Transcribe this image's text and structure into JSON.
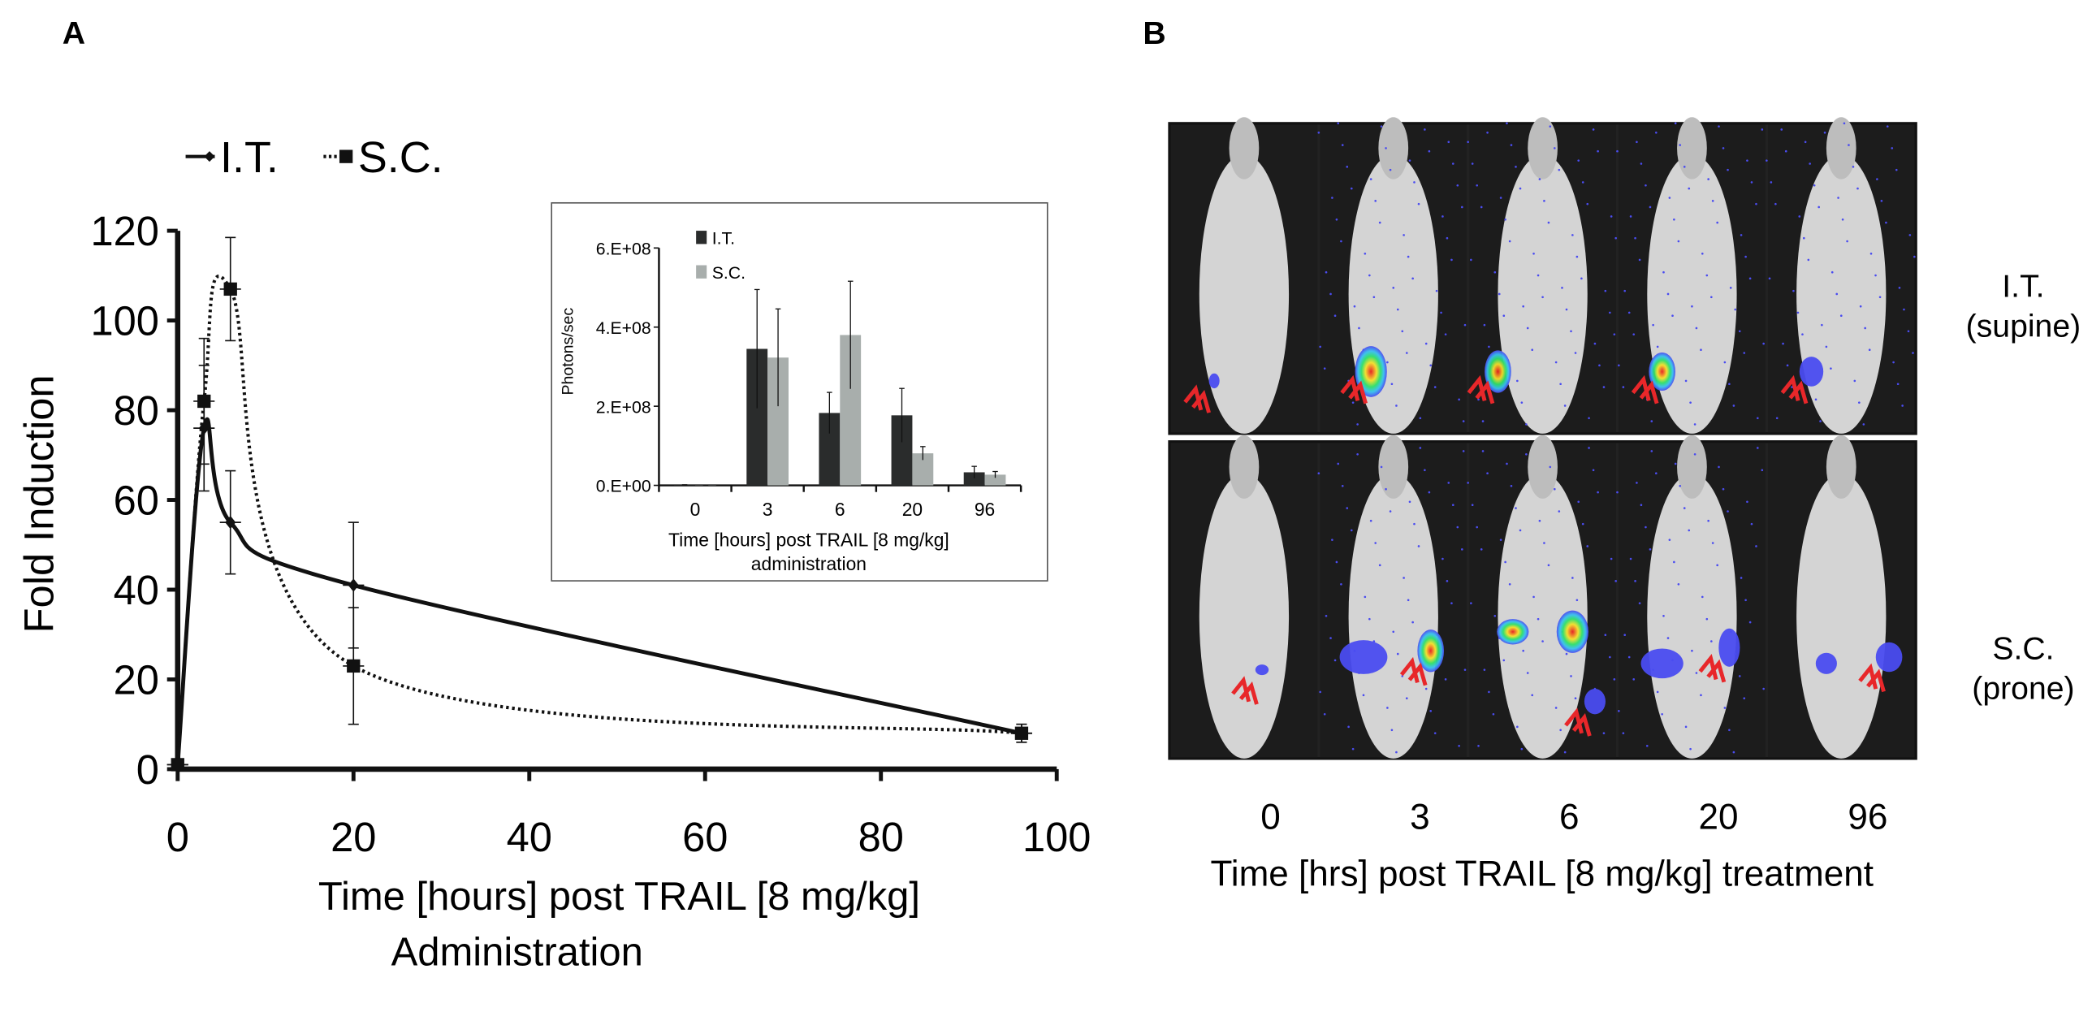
{
  "panels": {
    "a_label": "A",
    "b_label": "B"
  },
  "chart_data": [
    {
      "type": "line",
      "panel": "A",
      "xlabel_line1": "Time [hours] post TRAIL [8 mg/kg]",
      "xlabel_line2": "Administration",
      "ylabel": "Fold Induction",
      "xlim": [
        0,
        100
      ],
      "ylim": [
        0,
        120
      ],
      "xticks": [
        0,
        20,
        40,
        60,
        80,
        100
      ],
      "yticks": [
        0,
        20,
        40,
        60,
        80,
        100,
        120
      ],
      "grid": false,
      "legend_position": "top-left",
      "series": [
        {
          "name": "I.T.",
          "style": "solid",
          "marker": "diamond",
          "x": [
            0,
            3,
            6,
            20,
            96
          ],
          "y": [
            1,
            76,
            55,
            41,
            8
          ],
          "yerr": [
            0.5,
            14,
            11.5,
            14,
            2
          ]
        },
        {
          "name": "S.C.",
          "style": "dotted",
          "marker": "square",
          "x": [
            0,
            3,
            6,
            20,
            96
          ],
          "y": [
            1,
            82,
            107,
            23,
            8
          ],
          "yerr": [
            0.5,
            14,
            11.5,
            13,
            2
          ]
        }
      ]
    },
    {
      "type": "bar",
      "panel": "A-inset",
      "categories": [
        "0",
        "3",
        "6",
        "20",
        "96"
      ],
      "xlabel_line1": "Time [hours] post TRAIL [8 mg/kg]",
      "xlabel_line2": "administration",
      "ylabel": "Photons/sec",
      "ylim": [
        0,
        600000000
      ],
      "ytick_labels": [
        "0.E+00",
        "2.E+08",
        "4.E+08",
        "6.E+08"
      ],
      "yticks": [
        0,
        200000000,
        400000000,
        600000000
      ],
      "legend_position": "top-left",
      "series": [
        {
          "name": "I.T.",
          "color": "#2a2c2c",
          "values": [
            1000000,
            345000000,
            183000000,
            177000000,
            33000000
          ],
          "err": [
            500000,
            150000000,
            52000000,
            68000000,
            15000000
          ]
        },
        {
          "name": "S.C.",
          "color": "#a8aeac",
          "values": [
            500000,
            323000000,
            380000000,
            81000000,
            27000000
          ],
          "err": [
            300000,
            123000000,
            136000000,
            17000000,
            8000000
          ]
        }
      ]
    }
  ],
  "imaging": {
    "rows": [
      {
        "label_line1": "I.T.",
        "label_line2": "(supine)"
      },
      {
        "label_line1": "S.C.",
        "label_line2": "(prone)"
      }
    ],
    "timepoints": [
      "0",
      "3",
      "6",
      "20",
      "96"
    ],
    "xlabel": "Time [hrs] post TRAIL [8 mg/kg] treatment",
    "colors": {
      "arrow": "#e8272a",
      "signal_low": "#4a4cf0",
      "signal_mid": "#2ee06a",
      "signal_high": "#e81e1e"
    }
  }
}
